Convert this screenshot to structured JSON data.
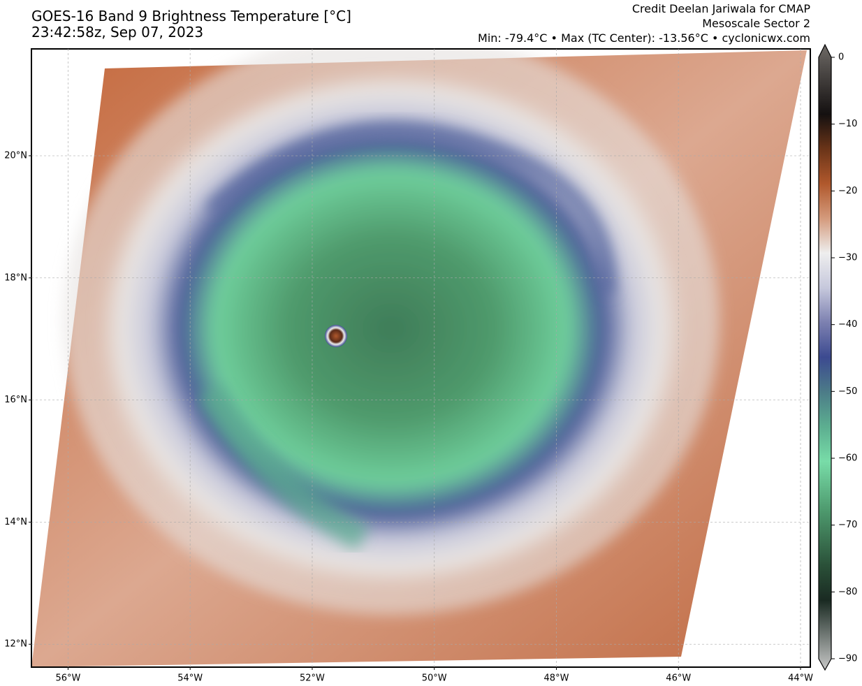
{
  "header": {
    "title": "GOES-16 Band 9 Brightness Temperature [°C]",
    "subtitle": "23:42:58z, Sep 07, 2023",
    "credit": "Credit Deelan Jariwala for CMAP",
    "sector": "Mesoscale Sector 2",
    "stats": "Min: -79.4°C • Max (TC Center): -13.56°C • cyclonicwx.com"
  },
  "map": {
    "lonlim": [
      -56.6,
      -43.84
    ],
    "latlim": [
      11.625,
      21.75
    ],
    "lon_ticks": [
      {
        "value": -56,
        "label": "56°W"
      },
      {
        "value": -54,
        "label": "54°W"
      },
      {
        "value": -52,
        "label": "52°W"
      },
      {
        "value": -50,
        "label": "50°W"
      },
      {
        "value": -48,
        "label": "48°W"
      },
      {
        "value": -46,
        "label": "46°W"
      },
      {
        "value": -44,
        "label": "44°W"
      }
    ],
    "lat_ticks": [
      {
        "value": 20,
        "label": "20°N"
      },
      {
        "value": 18,
        "label": "18°N"
      },
      {
        "value": 16,
        "label": "16°N"
      },
      {
        "value": 14,
        "label": "14°N"
      },
      {
        "value": 12,
        "label": "12°N"
      }
    ],
    "grid": true
  },
  "colorbar": {
    "clim": [
      -90,
      0
    ],
    "ticks": [
      0,
      {
        "value": -10,
        "label": "−10"
      },
      {
        "value": -20,
        "label": "−20"
      },
      {
        "value": -30,
        "label": "−30"
      },
      {
        "value": -40,
        "label": "−40"
      },
      {
        "value": -50,
        "label": "−50"
      },
      {
        "value": -60,
        "label": "−60"
      },
      {
        "value": -70,
        "label": "−70"
      },
      {
        "value": -80,
        "label": "−80"
      },
      {
        "value": -90,
        "label": "−90"
      }
    ],
    "colormap": [
      [
        0,
        "#6e6a66"
      ],
      [
        -10,
        "#141010"
      ],
      [
        -15,
        "#6a3418"
      ],
      [
        -20,
        "#b0582c"
      ],
      [
        -25,
        "#d49a7c"
      ],
      [
        -30,
        "#eeeeee"
      ],
      [
        -35,
        "#c6c8dc"
      ],
      [
        -40,
        "#7c80b0"
      ],
      [
        -45,
        "#3c4a90"
      ],
      [
        -50,
        "#4c7c88"
      ],
      [
        -55,
        "#5cae90"
      ],
      [
        -60,
        "#78dca8"
      ],
      [
        -67,
        "#4e9a6e"
      ],
      [
        -75,
        "#2a5038"
      ],
      [
        -80,
        "#1a2a22"
      ],
      [
        -90,
        "#c8c8c8"
      ]
    ]
  }
}
